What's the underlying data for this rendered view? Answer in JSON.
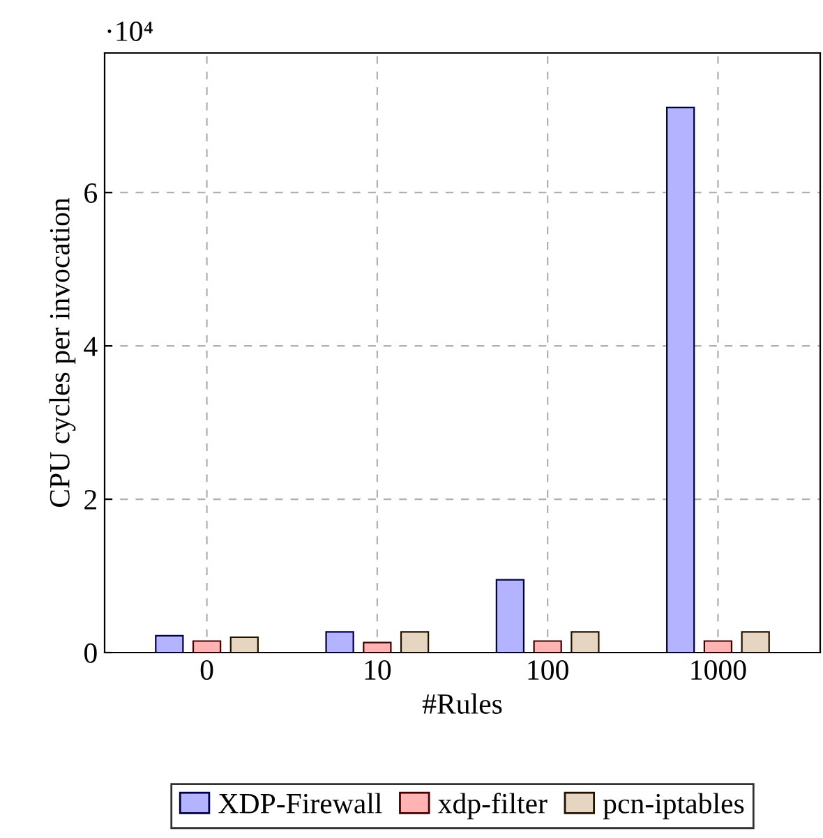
{
  "chart_data": {
    "type": "bar",
    "xlabel": "#Rules",
    "ylabel": "CPU cycles per invocation",
    "categories": [
      "0",
      "10",
      "100",
      "1000"
    ],
    "series": [
      {
        "name": "XDP-Firewall",
        "color": "#b3b3ff",
        "values": [
          0.22,
          0.27,
          0.95,
          7.11
        ]
      },
      {
        "name": "xdp-filter",
        "color": "#ffb3b3",
        "values": [
          0.15,
          0.13,
          0.15,
          0.15
        ]
      },
      {
        "name": "pcn-iptables",
        "color": "#e6d5c1",
        "values": [
          0.2,
          0.27,
          0.27,
          0.27
        ]
      }
    ],
    "ylim": [
      0,
      7.82
    ],
    "yticks": [
      0,
      2,
      4,
      6
    ],
    "grid": true,
    "legend": "bottom",
    "annotations": [
      "·10⁴"
    ]
  }
}
